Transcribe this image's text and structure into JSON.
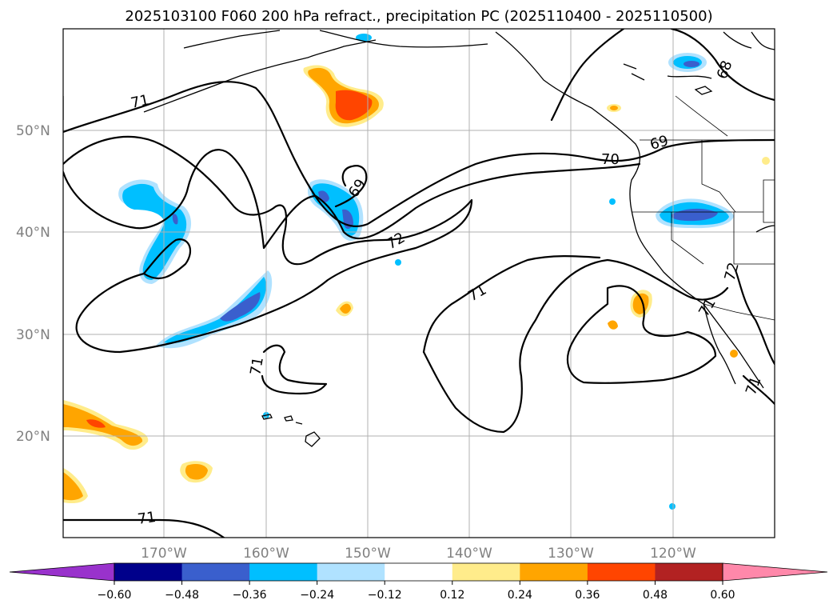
{
  "title": "2025103100 F060 200 hPa refract., precipitation PC (2025110400 - 2025110500)",
  "lat_labels": [
    "50°N",
    "40°N",
    "30°N",
    "20°N"
  ],
  "lon_labels": [
    "170°W",
    "160°W",
    "150°W",
    "140°W",
    "130°W",
    "120°W"
  ],
  "contour_labels": [
    "71",
    "69",
    "72",
    "71",
    "71",
    "70",
    "69",
    "68",
    "71",
    "71",
    "72",
    "71"
  ],
  "colorbar": {
    "ticks": [
      "−0.60",
      "−0.48",
      "−0.36",
      "−0.24",
      "−0.12",
      "0.12",
      "0.24",
      "0.36",
      "0.48",
      "0.60"
    ],
    "colors": [
      "#9932cc",
      "#00008b",
      "#3a5fcd",
      "#00bfff",
      "#b0e2ff",
      "#ffffff",
      "#ffec8b",
      "#ffa500",
      "#ff4500",
      "#b22222",
      "#ff88aa"
    ]
  },
  "colors": {
    "pos_light": "#ffec8b",
    "pos_mid": "#ffa500",
    "pos_strong": "#ff4500",
    "neg_light": "#b0e2ff",
    "neg_mid": "#00bfff",
    "neg_strong": "#3a5fcd"
  }
}
